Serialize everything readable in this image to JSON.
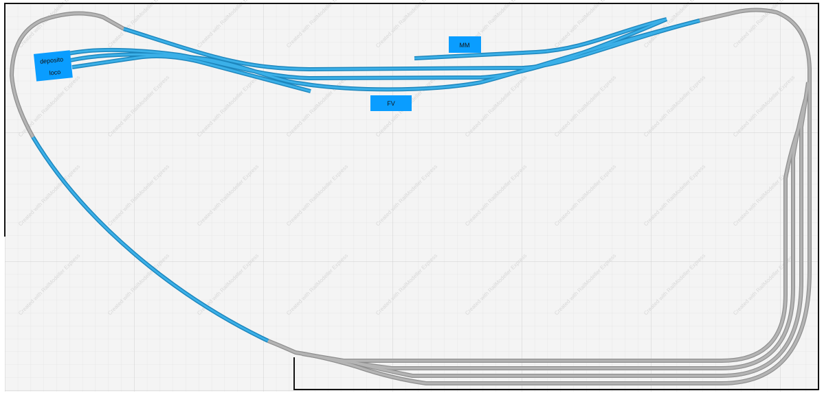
{
  "watermark": "Created with RailModeller Express",
  "labels": {
    "depot_line1": "deposito",
    "depot_line2": "loco",
    "mm": "MM",
    "fv": "FV"
  },
  "colors": {
    "background": "#f4f4f4",
    "grid_minor": "#e4e4e4",
    "grid_major": "#cfcfcf",
    "track_gray": "#a9a9a9",
    "track_blue": "#2ea3dc",
    "label_box": "#0a9dff",
    "board_outline": "#111111"
  }
}
